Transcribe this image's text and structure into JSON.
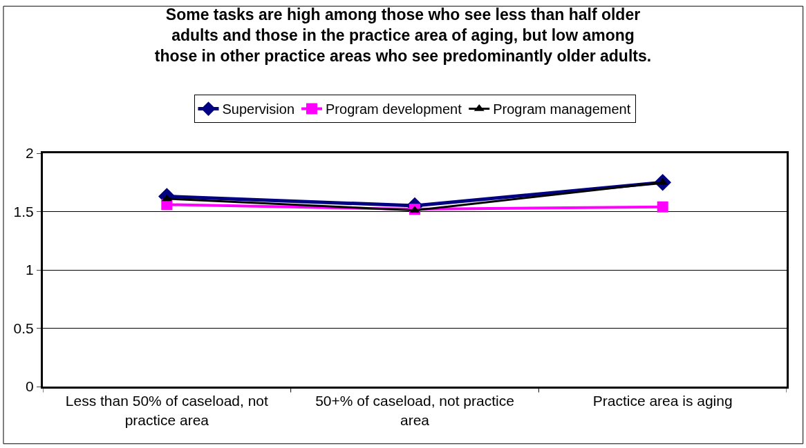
{
  "chart_data": {
    "type": "line",
    "title": "Some tasks are high among those who see less than half older\nadults and those in the practice area of aging, but low among\nthose in other practice areas who see predominantly older adults.",
    "categories": [
      "Less than 50% of caseload, not\npractice area",
      "50+% of caseload, not practice\narea",
      "Practice area is aging"
    ],
    "series": [
      {
        "name": "Supervision",
        "color": "#000080",
        "marker": "diamond",
        "values": [
          1.63,
          1.55,
          1.75
        ]
      },
      {
        "name": "Program development",
        "color": "#ff00ff",
        "marker": "square",
        "values": [
          1.56,
          1.52,
          1.54
        ]
      },
      {
        "name": "Program management",
        "color": "#000000",
        "marker": "triangle",
        "values": [
          1.61,
          1.51,
          1.75
        ]
      }
    ],
    "ylim": [
      0,
      2
    ],
    "yticks": [
      0,
      0.5,
      1,
      1.5,
      2
    ],
    "grid": "y",
    "legend": "top"
  }
}
